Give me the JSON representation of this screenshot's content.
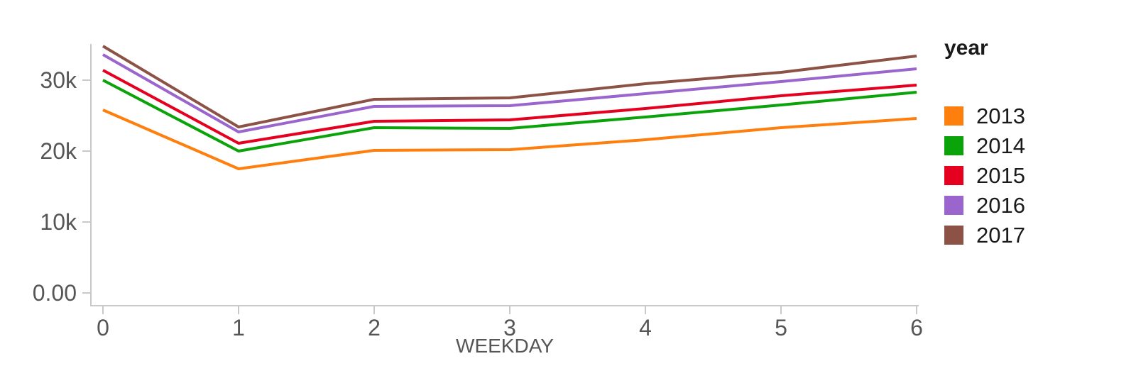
{
  "chart_data": {
    "type": "line",
    "title": "",
    "xlabel": "WEEKDAY",
    "ylabel": "",
    "x": [
      0,
      1,
      2,
      3,
      4,
      5,
      6
    ],
    "x_tick_labels": [
      "0",
      "1",
      "2",
      "3",
      "4",
      "5",
      "6"
    ],
    "y_ticks": [
      {
        "value": 0,
        "label": "0.00"
      },
      {
        "value": 10000,
        "label": "10k"
      },
      {
        "value": 20000,
        "label": "20k"
      },
      {
        "value": 30000,
        "label": "30k"
      }
    ],
    "ylim": [
      0,
      35000
    ],
    "grid": false,
    "legend": {
      "title": "year",
      "position": "right"
    },
    "series": [
      {
        "name": "2013",
        "color": "#ff7f0e",
        "values": [
          25800,
          17500,
          20100,
          20200,
          21600,
          23300,
          24600
        ]
      },
      {
        "name": "2014",
        "color": "#0aa30a",
        "values": [
          30000,
          20000,
          23300,
          23200,
          24800,
          26500,
          28300
        ]
      },
      {
        "name": "2015",
        "color": "#e50020",
        "values": [
          31400,
          21100,
          24200,
          24400,
          26000,
          27800,
          29300
        ]
      },
      {
        "name": "2016",
        "color": "#9a65cd",
        "values": [
          33600,
          22700,
          26300,
          26400,
          28100,
          29800,
          31600
        ]
      },
      {
        "name": "2017",
        "color": "#8c5246",
        "values": [
          34800,
          23400,
          27300,
          27500,
          29500,
          31100,
          33400
        ]
      }
    ]
  },
  "colors": {
    "background": "#ffffff",
    "axis_line": "#c9c9c9",
    "axis_text": "#565656",
    "legend_text": "#1a1a1a"
  }
}
